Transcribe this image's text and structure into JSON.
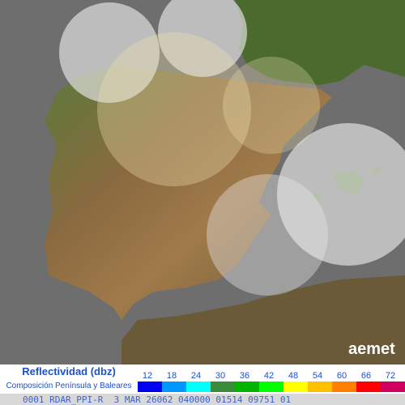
{
  "legend": {
    "title": "Reflectividad (dbz)",
    "subtitle": "Composición Península y Baleares",
    "items": [
      {
        "label": 12,
        "color": "#0000f0"
      },
      {
        "label": 18,
        "color": "#0096ff"
      },
      {
        "label": 24,
        "color": "#00ffff"
      },
      {
        "label": 30,
        "color": "#3a8c3a"
      },
      {
        "label": 36,
        "color": "#00b400"
      },
      {
        "label": 42,
        "color": "#00ff00"
      },
      {
        "label": 48,
        "color": "#ffff00"
      },
      {
        "label": 54,
        "color": "#ffc000"
      },
      {
        "label": 60,
        "color": "#ff8000"
      },
      {
        "label": 66,
        "color": "#ff0000"
      },
      {
        "label": 72,
        "color": "#d00060"
      }
    ]
  },
  "logo": "aemet",
  "footer": "0001 RDAR_PPI-R  3 MAR 26062 040000 01514 09751 01"
}
